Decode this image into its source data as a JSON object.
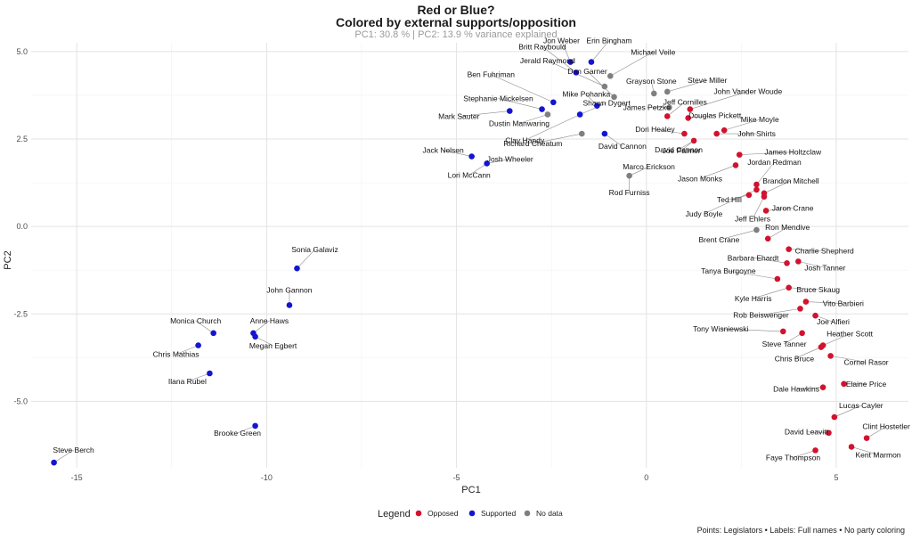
{
  "chart_data": {
    "type": "scatter",
    "title": "Red or Blue?",
    "subtitle_line": "Colored by external supports/opposition",
    "variance_note": "PC1: 30.8 % | PC2: 13.9 % variance explained",
    "xlabel": "PC1",
    "ylabel": "PC2",
    "xlim": [
      -16.2,
      6.9
    ],
    "ylim": [
      -6.9,
      5.25
    ],
    "x_ticks": [
      -15,
      -10,
      -5,
      0,
      5
    ],
    "y_ticks": [
      5.0,
      2.5,
      0.0,
      -2.5,
      -5.0
    ],
    "x_tick_labels": [
      "-15",
      "-10",
      "-5",
      "0",
      "5"
    ],
    "y_tick_labels": [
      "5.0",
      "2.5",
      "0.0",
      "-2.5",
      "-5.0"
    ],
    "grid": true,
    "legend": {
      "title": "Legend",
      "position": "bottom",
      "entries": [
        {
          "key": "Opposed",
          "label": "Opposed",
          "color": "#D2122E"
        },
        {
          "key": "Supported",
          "label": "Supported",
          "color": "#1414D2"
        },
        {
          "key": "No data",
          "label": "No data",
          "color": "#7F7F7F"
        }
      ]
    },
    "caption": "Points: Legislators • Labels: Full names • No party coloring",
    "points": [
      {
        "name": "Steve Berch",
        "x": -15.6,
        "y": -6.75,
        "group": "Supported"
      },
      {
        "name": "Brooke Green",
        "x": -10.3,
        "y": -5.7,
        "group": "Supported"
      },
      {
        "name": "Ilana Rubel",
        "x": -11.5,
        "y": -4.2,
        "group": "Supported"
      },
      {
        "name": "Chris Mathias",
        "x": -11.8,
        "y": -3.4,
        "group": "Supported"
      },
      {
        "name": "Monica Church",
        "x": -11.4,
        "y": -3.05,
        "group": "Supported"
      },
      {
        "name": "Anne Haws",
        "x": -10.35,
        "y": -3.05,
        "group": "Supported"
      },
      {
        "name": "Megan Egbert",
        "x": -10.3,
        "y": -3.15,
        "group": "Supported"
      },
      {
        "name": "John Gannon",
        "x": -9.4,
        "y": -2.25,
        "group": "Supported"
      },
      {
        "name": "Sonia Galaviz",
        "x": -9.2,
        "y": -1.2,
        "group": "Supported"
      },
      {
        "name": "Jack Nelsen",
        "x": -4.6,
        "y": 2.0,
        "group": "Supported"
      },
      {
        "name": "Josh Wheeler",
        "x": -4.2,
        "y": 1.8,
        "group": "Supported"
      },
      {
        "name": "Lori McCann",
        "x": -4.2,
        "y": 1.8,
        "group": "Supported"
      },
      {
        "name": "Mark Sauter",
        "x": -3.6,
        "y": 3.3,
        "group": "Supported"
      },
      {
        "name": "Stephanie Mickelsen",
        "x": -2.75,
        "y": 3.35,
        "group": "Supported"
      },
      {
        "name": "Ben Fuhriman",
        "x": -2.45,
        "y": 3.55,
        "group": "Supported"
      },
      {
        "name": "Britt Raybould",
        "x": -1.85,
        "y": 4.4,
        "group": "Supported"
      },
      {
        "name": "Jon Weber",
        "x": -2.0,
        "y": 4.7,
        "group": "Supported"
      },
      {
        "name": "Erin Bingham",
        "x": -1.45,
        "y": 4.7,
        "group": "Supported"
      },
      {
        "name": "Shawn Dygert",
        "x": -1.75,
        "y": 3.2,
        "group": "Supported"
      },
      {
        "name": "Clay Handy",
        "x": -1.75,
        "y": 3.2,
        "group": "Supported"
      },
      {
        "name": "Mike Pohanka",
        "x": -1.3,
        "y": 3.45,
        "group": "Supported"
      },
      {
        "name": "David Cannon",
        "x": -1.1,
        "y": 2.65,
        "group": "Supported"
      },
      {
        "name": "Dustin Manwaring",
        "x": -2.6,
        "y": 3.2,
        "group": "No data"
      },
      {
        "name": "Richard Cheatum",
        "x": -1.7,
        "y": 2.65,
        "group": "No data"
      },
      {
        "name": "Dan Garner",
        "x": -0.85,
        "y": 3.7,
        "group": "No data"
      },
      {
        "name": "Jerald Raymond",
        "x": -1.1,
        "y": 4.0,
        "group": "No data"
      },
      {
        "name": "Michael Veile",
        "x": -0.95,
        "y": 4.3,
        "group": "No data"
      },
      {
        "name": "Grayson Stone",
        "x": 0.2,
        "y": 3.8,
        "group": "No data"
      },
      {
        "name": "Steve Miller",
        "x": 0.55,
        "y": 3.85,
        "group": "No data"
      },
      {
        "name": "James Petzke",
        "x": 0.6,
        "y": 3.4,
        "group": "No data"
      },
      {
        "name": "Rod Furniss",
        "x": -0.45,
        "y": 1.45,
        "group": "No data"
      },
      {
        "name": "Marco Erickson",
        "x": -0.45,
        "y": 1.45,
        "group": "No data"
      },
      {
        "name": "Brent Crane",
        "x": 2.9,
        "y": -0.1,
        "group": "No data"
      },
      {
        "name": "Jeff Cornilles",
        "x": 0.55,
        "y": 3.15,
        "group": "Opposed"
      },
      {
        "name": "John Vander Woude",
        "x": 1.15,
        "y": 3.35,
        "group": "Opposed"
      },
      {
        "name": "Douglas Pickett",
        "x": 1.1,
        "y": 3.1,
        "group": "Opposed"
      },
      {
        "name": "Dori Healey",
        "x": 1.0,
        "y": 2.65,
        "group": "Opposed"
      },
      {
        "name": "Mike Moyle",
        "x": 2.05,
        "y": 2.75,
        "group": "Opposed"
      },
      {
        "name": "John Shirts",
        "x": 1.85,
        "y": 2.65,
        "group": "Opposed"
      },
      {
        "name": "Joe Palmer",
        "x": 1.25,
        "y": 2.45,
        "group": "Opposed"
      },
      {
        "name": "David Cannon",
        "x": 1.25,
        "y": 2.45,
        "group": "Opposed"
      },
      {
        "name": "James Holtzclaw",
        "x": 2.45,
        "y": 2.05,
        "group": "Opposed"
      },
      {
        "name": "Jason Monks",
        "x": 2.35,
        "y": 1.75,
        "group": "Opposed"
      },
      {
        "name": "Jordan Redman",
        "x": 2.9,
        "y": 1.2,
        "group": "Opposed"
      },
      {
        "name": "Brandon Mitchell",
        "x": 3.1,
        "y": 0.95,
        "group": "Opposed"
      },
      {
        "name": "Ted Hill",
        "x": 2.7,
        "y": 0.9,
        "group": "Opposed"
      },
      {
        "name": "Jaron Crane",
        "x": 3.15,
        "y": 0.45,
        "group": "Opposed"
      },
      {
        "name": "Judy Boyle",
        "x": 2.9,
        "y": 1.05,
        "group": "Opposed"
      },
      {
        "name": "Jeff Ehlers",
        "x": 3.1,
        "y": 0.85,
        "group": "Opposed"
      },
      {
        "name": "Ron Mendive",
        "x": 3.2,
        "y": -0.35,
        "group": "Opposed"
      },
      {
        "name": "Charlie Shepherd",
        "x": 3.75,
        "y": -0.65,
        "group": "Opposed"
      },
      {
        "name": "Barbara Ehardt",
        "x": 3.7,
        "y": -1.05,
        "group": "Opposed"
      },
      {
        "name": "Josh Tanner",
        "x": 4.0,
        "y": -1.0,
        "group": "Opposed"
      },
      {
        "name": "Tanya Burgoyne",
        "x": 3.45,
        "y": -1.5,
        "group": "Opposed"
      },
      {
        "name": "Bruce Skaug",
        "x": 3.75,
        "y": -1.75,
        "group": "Opposed"
      },
      {
        "name": "Kyle Harris",
        "x": 3.75,
        "y": -1.75,
        "group": "Opposed"
      },
      {
        "name": "Vito Barbieri",
        "x": 4.2,
        "y": -2.15,
        "group": "Opposed"
      },
      {
        "name": "Rob Beiswenger",
        "x": 4.05,
        "y": -2.35,
        "group": "Opposed"
      },
      {
        "name": "Joe Alfieri",
        "x": 4.45,
        "y": -2.55,
        "group": "Opposed"
      },
      {
        "name": "Tony Wisniewski",
        "x": 3.6,
        "y": -3.0,
        "group": "Opposed"
      },
      {
        "name": "Steve Tanner",
        "x": 4.1,
        "y": -3.05,
        "group": "Opposed"
      },
      {
        "name": "Heather Scott",
        "x": 4.65,
        "y": -3.4,
        "group": "Opposed"
      },
      {
        "name": "Chris Bruce",
        "x": 4.6,
        "y": -3.45,
        "group": "Opposed"
      },
      {
        "name": "Cornel Rasor",
        "x": 4.85,
        "y": -3.7,
        "group": "Opposed"
      },
      {
        "name": "Elaine Price",
        "x": 5.2,
        "y": -4.5,
        "group": "Opposed"
      },
      {
        "name": "Dale Hawkins",
        "x": 4.65,
        "y": -4.6,
        "group": "Opposed"
      },
      {
        "name": "Lucas Cayler",
        "x": 4.95,
        "y": -5.45,
        "group": "Opposed"
      },
      {
        "name": "David Leavitt",
        "x": 4.8,
        "y": -5.9,
        "group": "Opposed"
      },
      {
        "name": "Clint Hostetler",
        "x": 5.8,
        "y": -6.05,
        "group": "Opposed"
      },
      {
        "name": "Kent Marmon",
        "x": 5.4,
        "y": -6.3,
        "group": "Opposed"
      },
      {
        "name": "Faye Thompson",
        "x": 4.45,
        "y": -6.4,
        "group": "Opposed"
      }
    ]
  }
}
